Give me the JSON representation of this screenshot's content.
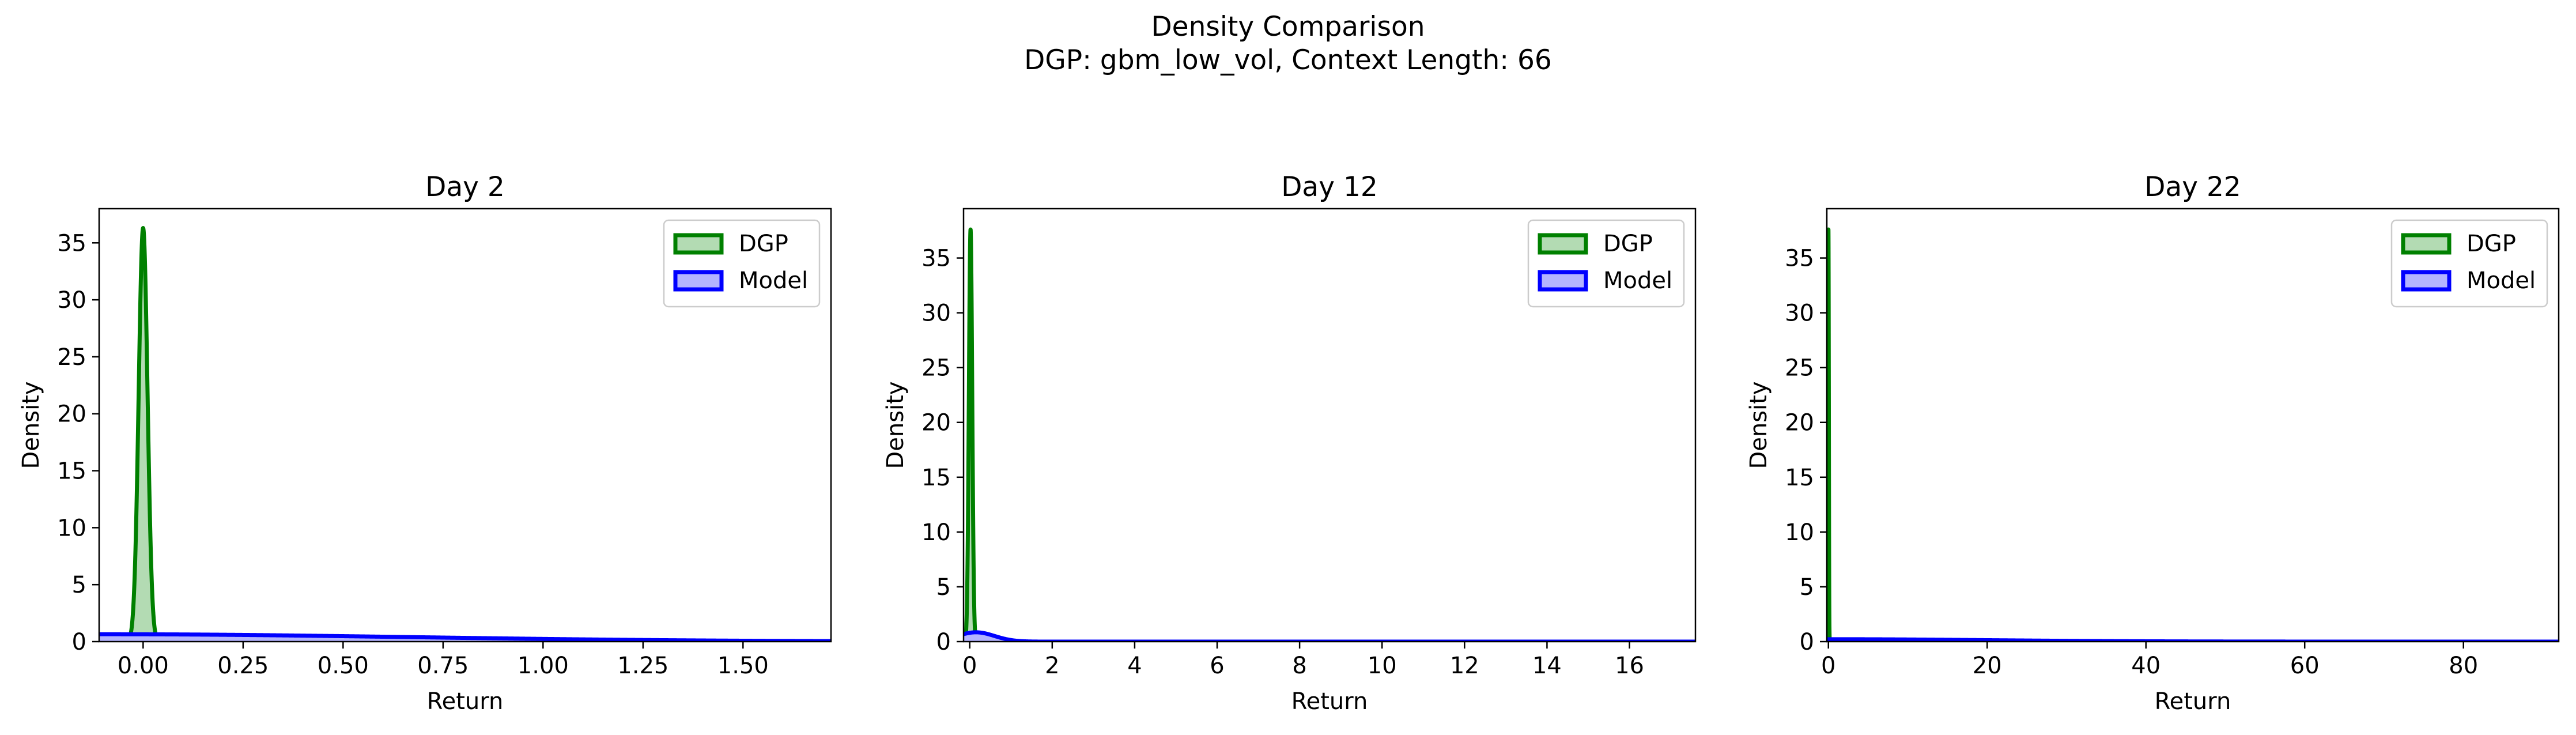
{
  "figure": {
    "title_line1": "Density Comparison",
    "title_line2": "DGP: gbm_low_vol, Context Length: 66"
  },
  "chart_data": [
    {
      "type": "area",
      "title": "Day 2",
      "xlabel": "Return",
      "ylabel": "Density",
      "xlim": [
        -0.11,
        1.72
      ],
      "ylim": [
        0,
        38
      ],
      "xticks": [
        0.0,
        0.25,
        0.5,
        0.75,
        1.0,
        1.25,
        1.5
      ],
      "xtick_labels": [
        "0.00",
        "0.25",
        "0.50",
        "0.75",
        "1.00",
        "1.25",
        "1.50"
      ],
      "yticks": [
        0,
        5,
        10,
        15,
        20,
        25,
        30,
        35
      ],
      "ytick_labels": [
        "0",
        "5",
        "10",
        "15",
        "20",
        "25",
        "30",
        "35"
      ],
      "legend_position": "top-right",
      "series": [
        {
          "name": "DGP",
          "color": "#008000",
          "fill": "#b3dbb3",
          "kind": "gaussian",
          "mu": 0.0,
          "sigma": 0.011,
          "peak": 36.3
        },
        {
          "name": "Model",
          "color": "#0000ff",
          "fill": "#b3b3ff",
          "kind": "halfnormal",
          "center": -0.11,
          "sigma": 0.78,
          "peak": 0.65
        }
      ]
    },
    {
      "type": "area",
      "title": "Day 12",
      "xlabel": "Return",
      "ylabel": "Density",
      "xlim": [
        -0.15,
        17.6
      ],
      "ylim": [
        0,
        39.5
      ],
      "xticks": [
        0,
        2,
        4,
        6,
        8,
        10,
        12,
        14,
        16
      ],
      "xtick_labels": [
        "0",
        "2",
        "4",
        "6",
        "8",
        "10",
        "12",
        "14",
        "16"
      ],
      "yticks": [
        0,
        5,
        10,
        15,
        20,
        25,
        30,
        35
      ],
      "ytick_labels": [
        "0",
        "5",
        "10",
        "15",
        "20",
        "25",
        "30",
        "35"
      ],
      "legend_position": "top-right",
      "series": [
        {
          "name": "DGP",
          "color": "#008000",
          "fill": "#b3dbb3",
          "kind": "gaussian",
          "mu": 0.02,
          "sigma": 0.04,
          "peak": 37.6
        },
        {
          "name": "Model",
          "color": "#0000ff",
          "fill": "#b3b3ff",
          "kind": "gaussian",
          "mu": 0.15,
          "sigma": 0.45,
          "peak": 0.85
        }
      ]
    },
    {
      "type": "area",
      "title": "Day 22",
      "xlabel": "Return",
      "ylabel": "Density",
      "xlim": [
        -0.2,
        92
      ],
      "ylim": [
        0,
        39.5
      ],
      "xticks": [
        0,
        20,
        40,
        60,
        80
      ],
      "xtick_labels": [
        "0",
        "20",
        "40",
        "60",
        "80"
      ],
      "yticks": [
        0,
        5,
        10,
        15,
        20,
        25,
        30,
        35
      ],
      "ytick_labels": [
        "0",
        "5",
        "10",
        "15",
        "20",
        "25",
        "30",
        "35"
      ],
      "legend_position": "top-right",
      "series": [
        {
          "name": "DGP",
          "color": "#008000",
          "fill": "#b3dbb3",
          "kind": "gaussian",
          "mu": 0.0,
          "sigma": 0.05,
          "peak": 37.6
        },
        {
          "name": "Model",
          "color": "#0000ff",
          "fill": "#b3b3ff",
          "kind": "halfnormal",
          "center": -0.2,
          "sigma": 20,
          "peak": 0.22
        }
      ]
    }
  ]
}
